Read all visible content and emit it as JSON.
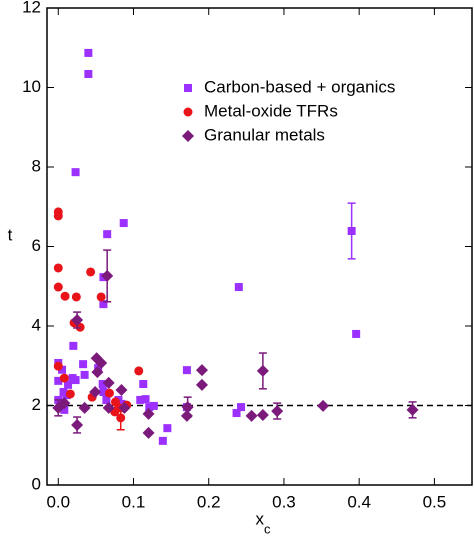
{
  "chart_data": {
    "type": "scatter",
    "xlabel": "x",
    "xlabel_subscript": "c",
    "ylabel": "t",
    "xlim": [
      -0.015,
      0.55
    ],
    "ylim": [
      0,
      12
    ],
    "xticks": [
      {
        "value": 0,
        "label": "0.0"
      },
      0.1,
      0.2,
      0.3,
      0.4,
      0.5
    ],
    "yticks": [
      0,
      2,
      4,
      6,
      8,
      10,
      12
    ],
    "hline": 2,
    "legend": "upper right",
    "series": [
      {
        "name": "Carbon-based + organics",
        "color": "#9b30ff",
        "marker": "square",
        "x": [
          0.04,
          0.04,
          0.023,
          0.065,
          0.087,
          0.06,
          0.06,
          0.24,
          0.396,
          0.39,
          0.02,
          0.0,
          0.005,
          0.0,
          0.007,
          0.013,
          0.023,
          0.0,
          0.005,
          0.008,
          0.011,
          0.019,
          0.033,
          0.035,
          0.053,
          0.059,
          0.06,
          0.064,
          0.08,
          0.084,
          0.113,
          0.116,
          0.121,
          0.127,
          0.145,
          0.139,
          0.171,
          0.237,
          0.243,
          0.171,
          0.109
        ],
        "values": [
          10.87,
          10.34,
          7.87,
          6.31,
          6.59,
          5.23,
          4.55,
          4.98,
          3.8,
          6.39,
          3.5,
          3.07,
          2.9,
          2.62,
          2.34,
          2.52,
          2.64,
          2.14,
          2.04,
          1.89,
          2.26,
          2.69,
          3.04,
          2.77,
          2.94,
          2.54,
          2.34,
          2.14,
          2.14,
          2.04,
          2.54,
          2.16,
          1.96,
          1.99,
          1.43,
          1.11,
          2.89,
          1.81,
          1.96,
          1.96,
          2.14
        ],
        "errors": [
          null,
          null,
          null,
          null,
          null,
          null,
          null,
          null,
          null,
          0.7,
          null,
          null,
          null,
          null,
          null,
          null,
          null,
          null,
          null,
          null,
          null,
          null,
          null,
          null,
          null,
          null,
          null,
          null,
          null,
          null,
          null,
          null,
          null,
          null,
          null,
          null,
          null,
          null,
          null,
          null,
          null
        ]
      },
      {
        "name": "Metal-oxide TFRs",
        "color": "#e8141a",
        "marker": "circle",
        "x": [
          0,
          0,
          0,
          0,
          0.009,
          0.024,
          0.021,
          0.029,
          0.043,
          0.057,
          0,
          0.008,
          0.016,
          0.045,
          0.076,
          0.08,
          0.075,
          0.083,
          0.091,
          0.107,
          0.087,
          0.068
        ],
        "values": [
          6.87,
          6.77,
          5.46,
          4.98,
          4.75,
          4.73,
          4.08,
          3.97,
          5.36,
          4.73,
          2.99,
          2.69,
          2.29,
          2.21,
          2.09,
          1.94,
          1.84,
          1.69,
          2.01,
          2.87,
          1.94,
          2.31
        ],
        "errors": [
          null,
          null,
          null,
          null,
          null,
          null,
          null,
          null,
          null,
          null,
          null,
          null,
          null,
          null,
          null,
          null,
          null,
          0.3,
          null,
          null,
          null,
          null
        ]
      },
      {
        "name": "Granular metals",
        "color": "#7b1a7b",
        "marker": "diamond",
        "x": [
          0,
          0.008,
          0.025,
          0.025,
          0.035,
          0.051,
          0.057,
          0.065,
          0.052,
          0.049,
          0.067,
          0.067,
          0.084,
          0.088,
          0.12,
          0.12,
          0.172,
          0.171,
          0.191,
          0.191,
          0.257,
          0.272,
          0.291,
          0.272,
          0.352,
          0.471
        ],
        "values": [
          1.94,
          2.06,
          1.51,
          4.15,
          1.94,
          3.19,
          3.07,
          5.26,
          2.84,
          2.34,
          2.57,
          1.94,
          2.39,
          1.94,
          1.79,
          1.31,
          1.96,
          1.74,
          2.89,
          2.52,
          1.74,
          2.87,
          1.86,
          1.76,
          1.99,
          1.89
        ],
        "errors": [
          0.2,
          null,
          0.2,
          0.2,
          null,
          null,
          null,
          0.65,
          null,
          null,
          null,
          null,
          null,
          null,
          null,
          null,
          0.25,
          null,
          null,
          null,
          null,
          0.45,
          0.2,
          null,
          null,
          0.2
        ]
      }
    ]
  }
}
